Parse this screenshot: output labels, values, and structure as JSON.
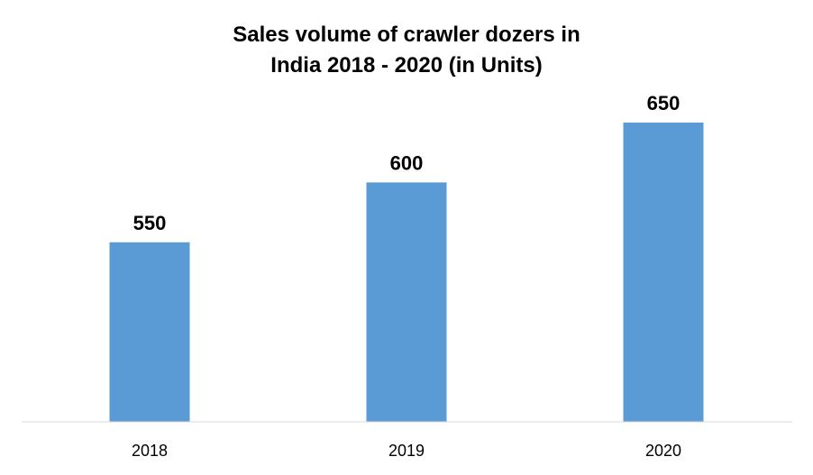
{
  "chart_data": {
    "type": "bar",
    "title_lines": [
      "Sales volume of crawler dozers in",
      "India 2018 - 2020 (in Units)"
    ],
    "categories": [
      "2018",
      "2019",
      "2020"
    ],
    "values": [
      550,
      600,
      650
    ],
    "data_labels": [
      "550",
      "600",
      "650"
    ],
    "bar_color": "#5B9BD5",
    "axis_color": "#D9D9D9",
    "xlabel": "",
    "ylabel": "",
    "ylim": [
      400,
      700
    ],
    "grid": false,
    "legend": "none"
  }
}
